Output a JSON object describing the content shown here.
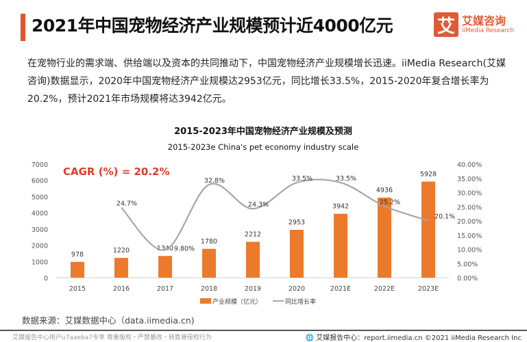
{
  "header": {
    "title": "2021年中国宠物经济产业规模预计近4000亿元",
    "logo_cn": "艾媒咨询",
    "logo_en": "iiMedia Research",
    "logo_mark": "艾"
  },
  "paragraph": "在宠物行业的需求端、供给端以及资本的共同推动下，中国宠物经济产业规模增长迅速。iiMedia Research(艾媒咨询)数据显示，2020年中国宠物经济产业规模达2953亿元，同比增长33.5%，2015-2020年复合增长率为20.2%，预计2021年市场规模将达3942亿元。",
  "chart_data": {
    "type": "bar+line",
    "title": "2015-2023年中国宠物经济产业规模及预测",
    "subtitle": "2015-2023e China's pet economy industry scale",
    "annotation": "CAGR (%) = 20.2%",
    "categories": [
      "2015",
      "2016",
      "2017",
      "2018",
      "2019",
      "2020",
      "2021E",
      "2022E",
      "2023E"
    ],
    "series": [
      {
        "name": "产业规模（亿元）",
        "type": "bar",
        "axis": "left",
        "color": "#ec7a2c",
        "values": [
          978,
          1220,
          1340,
          1780,
          2212,
          2953,
          3942,
          4936,
          5928
        ]
      },
      {
        "name": "同比增长率",
        "type": "line",
        "axis": "right",
        "color": "#a6a6a6",
        "values": [
          null,
          24.7,
          9.8,
          32.8,
          24.3,
          33.5,
          33.5,
          25.2,
          20.1
        ],
        "labels": [
          "",
          "24.7%",
          "9.80%",
          "32.8%",
          "24.3%",
          "33.5%",
          "33.5%",
          "25.2%",
          "20.1%"
        ]
      }
    ],
    "yleft": {
      "range": [
        0,
        7000
      ],
      "ticks": [
        0,
        1000,
        2000,
        3000,
        4000,
        5000,
        6000,
        7000
      ]
    },
    "yright": {
      "range": [
        0,
        40
      ],
      "ticks": [
        "0.00%",
        "5.00%",
        "10.00%",
        "15.00%",
        "20.00%",
        "25.00%",
        "30.00%",
        "35.00%",
        "40.00%"
      ]
    },
    "legend": "bottom",
    "grid": false
  },
  "source": "数据来源：艾媒数据中心（data.iimedia.cn)",
  "footer": {
    "left": "艾媒报告中心用户u7aaeba7专享 尊重版权・严禁篡改・转售等侵权行为",
    "right": "艾媒报告中心：report.iimedia.cn  ©2021  iiMedia Research  Inc"
  }
}
